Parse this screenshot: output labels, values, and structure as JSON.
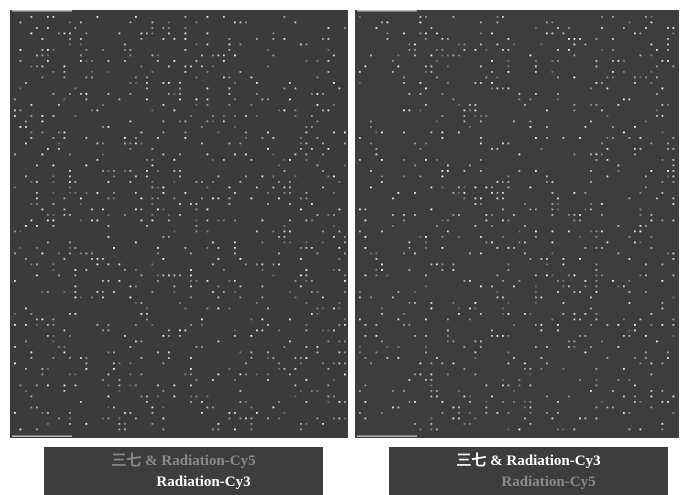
{
  "panels": [
    {
      "caption": {
        "line1": "三七 & Radiation-Cy5",
        "line2": "Radiation-Cy3"
      }
    },
    {
      "caption": {
        "line1": "三七 & Radiation-Cy3",
        "line2": "Radiation-Cy5"
      }
    }
  ]
}
